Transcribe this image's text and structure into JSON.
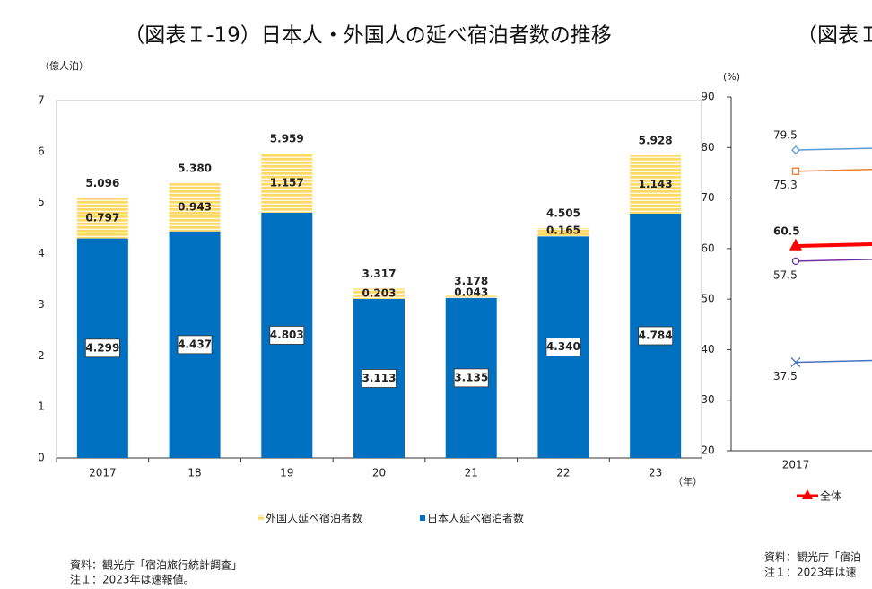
{
  "chart_data": [
    {
      "type": "bar",
      "stacked": true,
      "title": "（図表Ｉ-19）日本人・外国人の延べ宿泊者数の推移",
      "y_label": "（億人泊）",
      "x_label": "（年）",
      "categories": [
        "2017",
        "18",
        "19",
        "20",
        "21",
        "22",
        "23"
      ],
      "series": [
        {
          "name": "日本人延べ宿泊者数",
          "color": "#0070c0",
          "values": [
            4.299,
            4.437,
            4.803,
            3.113,
            3.135,
            4.34,
            4.784
          ],
          "value_labels": [
            "4.299",
            "4.437",
            "4.803",
            "3.113",
            "3.135",
            "4.340",
            "4.784"
          ]
        },
        {
          "name": "外国人延べ宿泊者数",
          "color": "#ffd966",
          "values": [
            0.797,
            0.943,
            1.157,
            0.203,
            0.043,
            0.165,
            1.143
          ],
          "value_labels": [
            "0.797",
            "0.943",
            "1.157",
            "0.203",
            "0.043",
            "0.165",
            "1.143"
          ]
        }
      ],
      "totals": [
        5.096,
        5.38,
        5.959,
        3.317,
        3.178,
        4.505,
        5.928
      ],
      "total_labels": [
        "5.096",
        "5.380",
        "5.959",
        "3.317",
        "3.178",
        "4.505",
        "5.928"
      ],
      "ylim": [
        0,
        7
      ],
      "yticks": [
        0,
        1,
        2,
        3,
        4,
        5,
        6,
        7
      ],
      "grid": false,
      "notes": [
        "資料：観光庁「宿泊旅行統計調査」",
        "注１：2023年は速報値。"
      ]
    },
    {
      "type": "line",
      "title": "（図表Ｉ",
      "y_label": "(%)",
      "categories": [
        "2017"
      ],
      "series": [
        {
          "color": "#5b9bd5",
          "marker": "diamond",
          "values": [
            79.5
          ]
        },
        {
          "color": "#ed7d31",
          "marker": "square",
          "values": [
            75.3
          ]
        },
        {
          "name": "全体",
          "color": "#ff0000",
          "marker": "triangle",
          "values": [
            60.5
          ]
        },
        {
          "color": "#7030a0",
          "marker": "circle",
          "values": [
            57.5
          ]
        },
        {
          "color": "#4472c4",
          "marker": "x",
          "values": [
            37.5
          ]
        }
      ],
      "ylim": [
        20,
        90
      ],
      "yticks": [
        20,
        30,
        40,
        50,
        60,
        70,
        80,
        90
      ],
      "notes": [
        "資料：観光庁「宿泊",
        "注１：2023年は速"
      ]
    }
  ]
}
